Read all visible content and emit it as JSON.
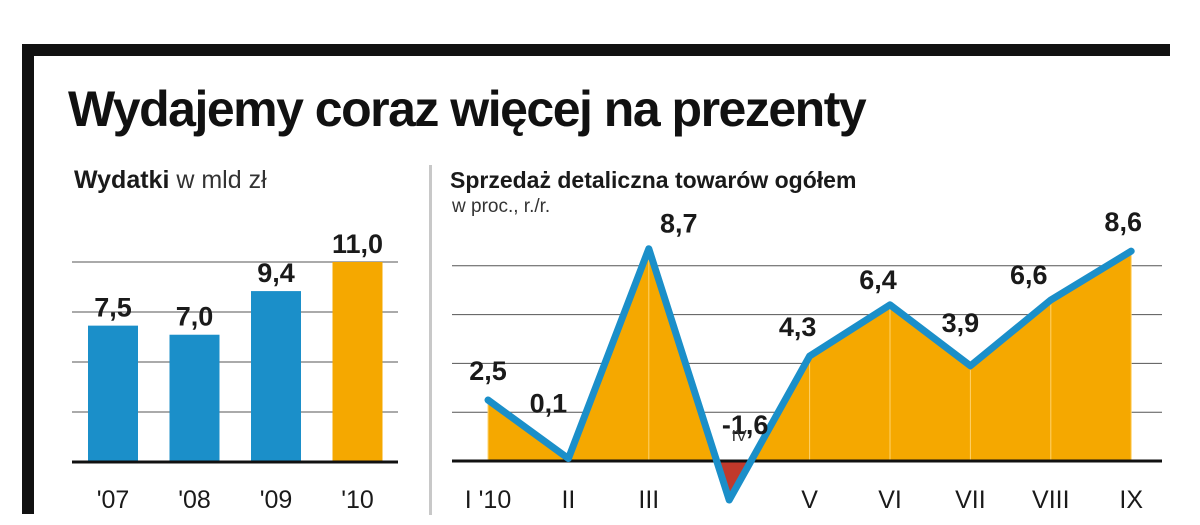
{
  "headline": "Wydajemy coraz więcej na prezenty",
  "colors": {
    "blue": "#1b8fc9",
    "orange": "#f5a800",
    "negative": "#c0392b",
    "grid": "#555555",
    "frame": "#111111"
  },
  "chart_data": [
    {
      "type": "bar",
      "title": "Wydatki",
      "units": "w mld zł",
      "categories": [
        "'07",
        "'08",
        "'09",
        "'10"
      ],
      "values": [
        7.5,
        7.0,
        9.4,
        11.0
      ],
      "value_labels": [
        "7,5",
        "7,0",
        "9,4",
        "11,0"
      ],
      "bar_colors": [
        "#1b8fc9",
        "#1b8fc9",
        "#1b8fc9",
        "#f5a800"
      ],
      "ylim": [
        0,
        11
      ],
      "grid": true
    },
    {
      "type": "line",
      "title": "Sprzedaż detaliczna towarów ogółem",
      "subtitle": "w proc., r./r.",
      "categories": [
        "I '10",
        "II",
        "III",
        "IV",
        "V",
        "VI",
        "VII",
        "VIII",
        "IX"
      ],
      "values": [
        2.5,
        0.1,
        8.7,
        -1.6,
        4.3,
        6.4,
        3.9,
        6.6,
        8.6
      ],
      "value_labels": [
        "2,5",
        "0,1",
        "8,7",
        "-1,6",
        "4,3",
        "6,4",
        "3,9",
        "6,6",
        "8,6"
      ],
      "ylim": [
        -2,
        9
      ],
      "line_color": "#1b8fc9",
      "fill_color": "#f5a800",
      "negative_fill_color": "#c0392b",
      "grid": true
    }
  ]
}
